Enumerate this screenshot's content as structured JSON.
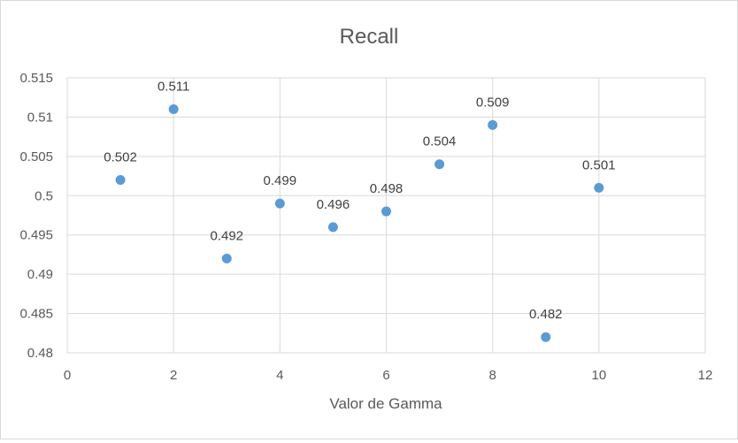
{
  "chart_data": {
    "type": "scatter",
    "title": "Recall",
    "xlabel": "Valor de Gamma",
    "ylabel": "",
    "xlim": [
      0,
      12
    ],
    "ylim": [
      0.48,
      0.515
    ],
    "x_ticks": [
      0,
      2,
      4,
      6,
      8,
      10,
      12
    ],
    "x_tick_labels": [
      "0",
      "2",
      "4",
      "6",
      "8",
      "10",
      "12"
    ],
    "y_ticks": [
      0.48,
      0.485,
      0.49,
      0.495,
      0.5,
      0.505,
      0.51,
      0.515
    ],
    "y_tick_labels": [
      "0.48",
      "0.485",
      "0.49",
      "0.495",
      "0.5",
      "0.505",
      "0.51",
      "0.515"
    ],
    "grid": true,
    "legend": "none",
    "marker_color": "#5b9bd5",
    "series": [
      {
        "points": [
          {
            "x": 1,
            "y": 0.502,
            "label": "0.502"
          },
          {
            "x": 2,
            "y": 0.511,
            "label": "0.511"
          },
          {
            "x": 3,
            "y": 0.492,
            "label": "0.492"
          },
          {
            "x": 4,
            "y": 0.499,
            "label": "0.499"
          },
          {
            "x": 5,
            "y": 0.496,
            "label": "0.496"
          },
          {
            "x": 6,
            "y": 0.498,
            "label": "0.498"
          },
          {
            "x": 7,
            "y": 0.504,
            "label": "0.504"
          },
          {
            "x": 8,
            "y": 0.509,
            "label": "0.509"
          },
          {
            "x": 9,
            "y": 0.482,
            "label": "0.482"
          },
          {
            "x": 10,
            "y": 0.501,
            "label": "0.501"
          }
        ]
      }
    ]
  }
}
